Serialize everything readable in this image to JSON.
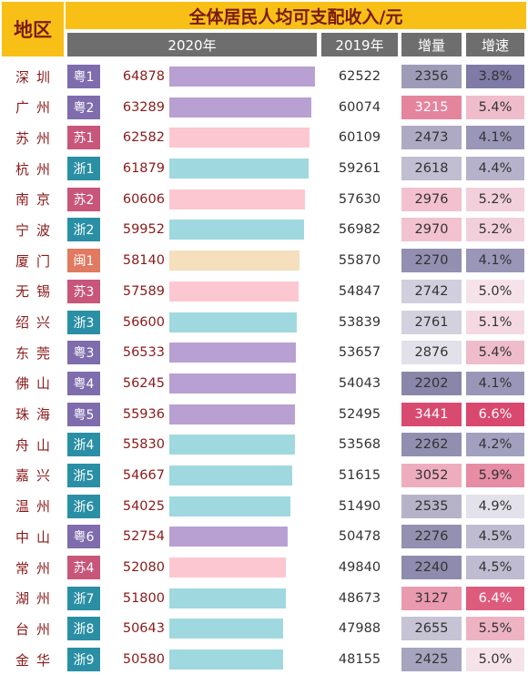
{
  "header": {
    "region": "地区",
    "title": "全体居民人均可支配收入/元",
    "col_2020": "2020年",
    "col_2019": "2019年",
    "col_increase": "增量",
    "col_growth": "增速"
  },
  "colors": {
    "header_yellow": "#f8c017",
    "header_gray": "#6e6e6e",
    "粤": "#7e6cad",
    "苏": "#c8557a",
    "浙": "#2a8fa5",
    "闽": "#e07a60",
    "bar_粤": "#b8a0d2",
    "bar_苏": "#fcc7d1",
    "bar_浙": "#9fd9df",
    "bar_闽": "#f5dfbd"
  },
  "chart_data": {
    "type": "table",
    "title": "全体居民人均可支配收入/元",
    "columns": [
      "地区",
      "",
      "2020年",
      "2019年",
      "增量",
      "增速"
    ],
    "bar_scale_max": 64878,
    "rows": [
      {
        "city": "深圳",
        "badge": "粤1",
        "province": "粤",
        "v2020": 64878,
        "v2019": 62522,
        "increase": 2356,
        "growth": "3.8%",
        "g": 3.8
      },
      {
        "city": "广州",
        "badge": "粤2",
        "province": "粤",
        "v2020": 63289,
        "v2019": 60074,
        "increase": 3215,
        "growth": "5.4%",
        "g": 5.4
      },
      {
        "city": "苏州",
        "badge": "苏1",
        "province": "苏",
        "v2020": 62582,
        "v2019": 60109,
        "increase": 2473,
        "growth": "4.1%",
        "g": 4.1
      },
      {
        "city": "杭州",
        "badge": "浙1",
        "province": "浙",
        "v2020": 61879,
        "v2019": 59261,
        "increase": 2618,
        "growth": "4.4%",
        "g": 4.4
      },
      {
        "city": "南京",
        "badge": "苏2",
        "province": "苏",
        "v2020": 60606,
        "v2019": 57630,
        "increase": 2976,
        "growth": "5.2%",
        "g": 5.2
      },
      {
        "city": "宁波",
        "badge": "浙2",
        "province": "浙",
        "v2020": 59952,
        "v2019": 56982,
        "increase": 2970,
        "growth": "5.2%",
        "g": 5.2
      },
      {
        "city": "厦门",
        "badge": "闽1",
        "province": "闽",
        "v2020": 58140,
        "v2019": 55870,
        "increase": 2270,
        "growth": "4.1%",
        "g": 4.1
      },
      {
        "city": "无锡",
        "badge": "苏3",
        "province": "苏",
        "v2020": 57589,
        "v2019": 54847,
        "increase": 2742,
        "growth": "5.0%",
        "g": 5.0
      },
      {
        "city": "绍兴",
        "badge": "浙3",
        "province": "浙",
        "v2020": 56600,
        "v2019": 53839,
        "increase": 2761,
        "growth": "5.1%",
        "g": 5.1
      },
      {
        "city": "东莞",
        "badge": "粤3",
        "province": "粤",
        "v2020": 56533,
        "v2019": 53657,
        "increase": 2876,
        "growth": "5.4%",
        "g": 5.4
      },
      {
        "city": "佛山",
        "badge": "粤4",
        "province": "粤",
        "v2020": 56245,
        "v2019": 54043,
        "increase": 2202,
        "growth": "4.1%",
        "g": 4.1
      },
      {
        "city": "珠海",
        "badge": "粤5",
        "province": "粤",
        "v2020": 55936,
        "v2019": 52495,
        "increase": 3441,
        "growth": "6.6%",
        "g": 6.6
      },
      {
        "city": "舟山",
        "badge": "浙4",
        "province": "浙",
        "v2020": 55830,
        "v2019": 53568,
        "increase": 2262,
        "growth": "4.2%",
        "g": 4.2
      },
      {
        "city": "嘉兴",
        "badge": "浙5",
        "province": "浙",
        "v2020": 54667,
        "v2019": 51615,
        "increase": 3052,
        "growth": "5.9%",
        "g": 5.9
      },
      {
        "city": "温州",
        "badge": "浙6",
        "province": "浙",
        "v2020": 54025,
        "v2019": 51490,
        "increase": 2535,
        "growth": "4.9%",
        "g": 4.9
      },
      {
        "city": "中山",
        "badge": "粤6",
        "province": "粤",
        "v2020": 52754,
        "v2019": 50478,
        "increase": 2276,
        "growth": "4.5%",
        "g": 4.5
      },
      {
        "city": "常州",
        "badge": "苏4",
        "province": "苏",
        "v2020": 52080,
        "v2019": 49840,
        "increase": 2240,
        "growth": "4.5%",
        "g": 4.5
      },
      {
        "city": "湖州",
        "badge": "浙7",
        "province": "浙",
        "v2020": 51800,
        "v2019": 48673,
        "increase": 3127,
        "growth": "6.4%",
        "g": 6.4
      },
      {
        "city": "台州",
        "badge": "浙8",
        "province": "浙",
        "v2020": 50643,
        "v2019": 47988,
        "increase": 2655,
        "growth": "5.5%",
        "g": 5.5
      },
      {
        "city": "金华",
        "badge": "浙9",
        "province": "浙",
        "v2020": 50580,
        "v2019": 48155,
        "increase": 2425,
        "growth": "5.0%",
        "g": 5.0
      }
    ]
  }
}
